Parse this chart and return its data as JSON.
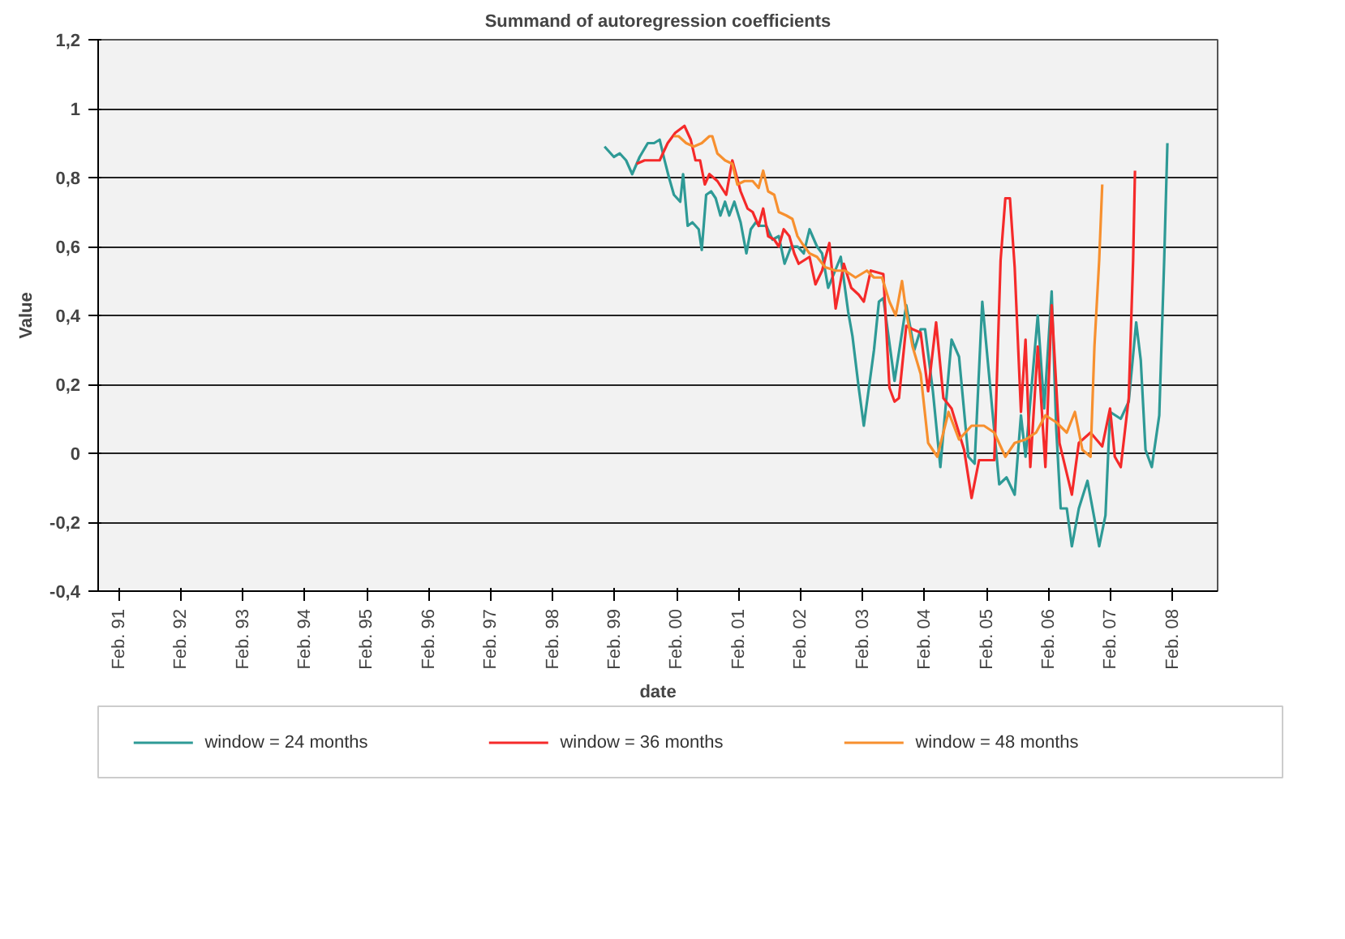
{
  "chart_data": {
    "type": "line",
    "title": "Summand of autoregression coefficients",
    "xlabel": "date",
    "ylabel": "Value",
    "xlim": [
      "1990-10-01",
      "2008-10-23"
    ],
    "ylim": [
      -0.4,
      1.2
    ],
    "xticks": [
      {
        "value": "1991-02",
        "label": "Feb. 91"
      },
      {
        "value": "1992-02",
        "label": "Feb. 92"
      },
      {
        "value": "1993-02",
        "label": "Feb. 93"
      },
      {
        "value": "1994-02",
        "label": "Feb. 94"
      },
      {
        "value": "1995-02",
        "label": "Feb. 95"
      },
      {
        "value": "1996-02",
        "label": "Feb. 96"
      },
      {
        "value": "1997-02",
        "label": "Feb. 97"
      },
      {
        "value": "1998-02",
        "label": "Feb. 98"
      },
      {
        "value": "1999-02",
        "label": "Feb. 99"
      },
      {
        "value": "2000-02",
        "label": "Feb. 00"
      },
      {
        "value": "2001-02",
        "label": "Feb. 01"
      },
      {
        "value": "2002-02",
        "label": "Feb. 02"
      },
      {
        "value": "2003-02",
        "label": "Feb. 03"
      },
      {
        "value": "2004-02",
        "label": "Feb. 04"
      },
      {
        "value": "2005-02",
        "label": "Feb. 05"
      },
      {
        "value": "2006-02",
        "label": "Feb. 06"
      },
      {
        "value": "2007-02",
        "label": "Feb. 07"
      },
      {
        "value": "2008-02",
        "label": "Feb. 08"
      }
    ],
    "yticks": [
      {
        "value": -0.4,
        "label": "-0,4"
      },
      {
        "value": -0.2,
        "label": "-0,2"
      },
      0,
      {
        "value": 0.2,
        "label": "0,2"
      },
      {
        "value": 0.4,
        "label": "0,4"
      },
      {
        "value": 0.6,
        "label": "0,6"
      },
      {
        "value": 0.8,
        "label": "0,8"
      },
      1,
      {
        "value": 1.2,
        "label": "1,2"
      }
    ],
    "grid": "y",
    "legend": "bottom",
    "marker": "none",
    "line_style": "solid",
    "series": [
      {
        "name": "window = 24 months",
        "color": "#2e9a96",
        "x": [
          "1998-12-02",
          "1999-01-26",
          "1999-03-02",
          "1999-04-08",
          "1999-05-14",
          "1999-06-27",
          "1999-08-14",
          "1999-09-20",
          "1999-10-23",
          "1999-11-21",
          "1999-12-17",
          "2000-01-15",
          "2000-02-21",
          "2000-03-09",
          "2000-04-05",
          "2000-05-03",
          "2000-06-09",
          "2000-06-27",
          "2000-07-23",
          "2000-08-21",
          "2000-09-17",
          "2000-10-15",
          "2000-11-11",
          "2000-12-06",
          "2001-01-05",
          "2001-02-11",
          "2001-03-17",
          "2001-04-12",
          "2001-05-11",
          "2001-06-06",
          "2001-07-12",
          "2001-08-18",
          "2001-09-24",
          "2001-10-28",
          "2001-12-06",
          "2002-01-12",
          "2002-02-18",
          "2002-03-24",
          "2002-05-07",
          "2002-06-06",
          "2002-07-12",
          "2002-09-24",
          "2002-11-07",
          "2002-12-02",
          "2003-01-08",
          "2003-02-07",
          "2003-04-08",
          "2003-05-07",
          "2003-06-02",
          "2003-08-07",
          "2003-10-15",
          "2003-12-02",
          "2004-01-08",
          "2004-02-03",
          "2004-03-20",
          "2004-05-03",
          "2004-07-08",
          "2004-08-21",
          "2004-10-15",
          "2004-11-21",
          "2005-01-05",
          "2005-02-21",
          "2005-04-15",
          "2005-05-28",
          "2005-07-15",
          "2005-08-21",
          "2005-09-17",
          "2005-11-28",
          "2006-01-05",
          "2006-02-18",
          "2006-03-17",
          "2006-04-12",
          "2006-05-18",
          "2006-06-17",
          "2006-07-28",
          "2006-09-17",
          "2006-10-28",
          "2006-11-25",
          "2007-01-01",
          "2007-01-28",
          "2007-04-01",
          "2007-05-18",
          "2007-07-01",
          "2007-07-28",
          "2007-08-25",
          "2007-10-01",
          "2007-11-14",
          "2007-12-13",
          "2008-01-01"
        ],
        "values": [
          0.89,
          0.86,
          0.87,
          0.85,
          0.81,
          0.86,
          0.9,
          0.9,
          0.91,
          0.85,
          0.8,
          0.75,
          0.73,
          0.81,
          0.66,
          0.67,
          0.65,
          0.59,
          0.75,
          0.76,
          0.74,
          0.69,
          0.73,
          0.69,
          0.73,
          0.67,
          0.58,
          0.65,
          0.67,
          0.66,
          0.66,
          0.62,
          0.63,
          0.55,
          0.6,
          0.6,
          0.58,
          0.65,
          0.6,
          0.58,
          0.48,
          0.57,
          0.41,
          0.34,
          0.19,
          0.08,
          0.3,
          0.44,
          0.45,
          0.21,
          0.43,
          0.3,
          0.36,
          0.36,
          0.18,
          -0.04,
          0.33,
          0.28,
          -0.01,
          -0.03,
          0.44,
          0.19,
          -0.09,
          -0.07,
          -0.12,
          0.11,
          -0.01,
          0.4,
          0.13,
          0.47,
          0.07,
          -0.16,
          -0.16,
          -0.27,
          -0.16,
          -0.08,
          -0.19,
          -0.27,
          -0.18,
          0.12,
          0.1,
          0.15,
          0.38,
          0.27,
          0.01,
          -0.04,
          0.11,
          0.56,
          0.9
        ]
      },
      {
        "name": "window = 36 months",
        "color": "#f52a2a",
        "x": [
          "1999-06-09",
          "1999-07-26",
          "1999-09-09",
          "1999-10-23",
          "1999-12-09",
          "2000-01-23",
          "2000-03-17",
          "2000-04-23",
          "2000-05-21",
          "2000-06-17",
          "2000-07-15",
          "2000-08-11",
          "2000-09-27",
          "2000-11-18",
          "2000-12-24",
          "2001-02-11",
          "2001-03-24",
          "2001-04-23",
          "2001-05-28",
          "2001-06-24",
          "2001-07-23",
          "2001-08-28",
          "2001-09-24",
          "2001-10-23",
          "2001-11-25",
          "2001-12-24",
          "2002-01-19",
          "2002-03-24",
          "2002-04-28",
          "2002-06-06",
          "2002-07-19",
          "2002-08-25",
          "2002-10-12",
          "2002-11-25",
          "2003-01-08",
          "2003-02-07",
          "2003-03-20",
          "2003-06-02",
          "2003-07-08",
          "2003-08-07",
          "2003-09-02",
          "2003-10-15",
          "2003-11-21",
          "2004-01-08",
          "2004-02-21",
          "2004-04-08",
          "2004-05-21",
          "2004-07-08",
          "2004-09-20",
          "2004-11-03",
          "2004-12-17",
          "2005-03-17",
          "2005-04-23",
          "2005-05-21",
          "2005-06-17",
          "2005-07-15",
          "2005-08-21",
          "2005-09-17",
          "2005-10-15",
          "2005-11-28",
          "2006-01-12",
          "2006-02-18",
          "2006-04-05",
          "2006-06-17",
          "2006-07-28",
          "2006-10-05",
          "2006-12-13",
          "2007-01-28",
          "2007-02-25",
          "2007-04-01",
          "2007-05-18",
          "2007-06-13",
          "2007-06-24"
        ],
        "values": [
          0.84,
          0.85,
          0.85,
          0.85,
          0.9,
          0.93,
          0.95,
          0.91,
          0.85,
          0.85,
          0.78,
          0.81,
          0.79,
          0.75,
          0.85,
          0.76,
          0.71,
          0.7,
          0.66,
          0.71,
          0.63,
          0.62,
          0.6,
          0.65,
          0.63,
          0.58,
          0.55,
          0.57,
          0.49,
          0.53,
          0.61,
          0.42,
          0.55,
          0.48,
          0.46,
          0.44,
          0.53,
          0.52,
          0.19,
          0.15,
          0.16,
          0.37,
          0.36,
          0.35,
          0.18,
          0.38,
          0.16,
          0.13,
          0.01,
          -0.13,
          -0.02,
          -0.02,
          0.56,
          0.74,
          0.74,
          0.54,
          0.12,
          0.33,
          -0.04,
          0.31,
          -0.04,
          0.43,
          0.03,
          -0.12,
          0.03,
          0.06,
          0.02,
          0.13,
          -0.01,
          -0.04,
          0.16,
          0.56,
          0.82
        ]
      },
      {
        "name": "window = 48 months",
        "color": "#f7902f",
        "x": [
          "2000-01-15",
          "2000-02-11",
          "2000-03-27",
          "2000-05-11",
          "2000-06-27",
          "2000-08-11",
          "2000-08-28",
          "2000-09-27",
          "2000-11-11",
          "2000-12-24",
          "2001-01-23",
          "2001-03-06",
          "2001-04-23",
          "2001-05-28",
          "2001-06-24",
          "2001-07-23",
          "2001-08-28",
          "2001-09-24",
          "2001-11-07",
          "2001-12-13",
          "2002-01-12",
          "2002-02-07",
          "2002-03-24",
          "2002-05-07",
          "2002-06-24",
          "2002-08-25",
          "2002-10-19",
          "2002-12-20",
          "2003-02-25",
          "2003-04-08",
          "2003-05-25",
          "2003-07-08",
          "2003-08-14",
          "2003-09-20",
          "2003-10-15",
          "2003-11-21",
          "2004-01-08",
          "2004-02-21",
          "2004-04-15",
          "2004-06-20",
          "2004-08-21",
          "2004-11-03",
          "2005-01-15",
          "2005-03-17",
          "2005-05-21",
          "2005-07-15",
          "2005-09-17",
          "2005-11-18",
          "2006-01-12",
          "2006-03-17",
          "2006-05-18",
          "2006-07-05",
          "2006-08-18",
          "2006-10-05",
          "2006-10-28",
          "2006-11-25",
          "2006-12-13"
        ],
        "values": [
          0.92,
          0.92,
          0.9,
          0.89,
          0.9,
          0.92,
          0.92,
          0.87,
          0.85,
          0.84,
          0.78,
          0.79,
          0.79,
          0.77,
          0.82,
          0.76,
          0.75,
          0.7,
          0.69,
          0.68,
          0.63,
          0.61,
          0.58,
          0.57,
          0.54,
          0.53,
          0.53,
          0.51,
          0.53,
          0.51,
          0.51,
          0.44,
          0.4,
          0.5,
          0.41,
          0.31,
          0.23,
          0.03,
          -0.01,
          0.12,
          0.04,
          0.08,
          0.08,
          0.06,
          -0.01,
          0.03,
          0.04,
          0.06,
          0.11,
          0.09,
          0.06,
          0.12,
          0.01,
          -0.01,
          0.31,
          0.56,
          0.78
        ]
      }
    ]
  }
}
